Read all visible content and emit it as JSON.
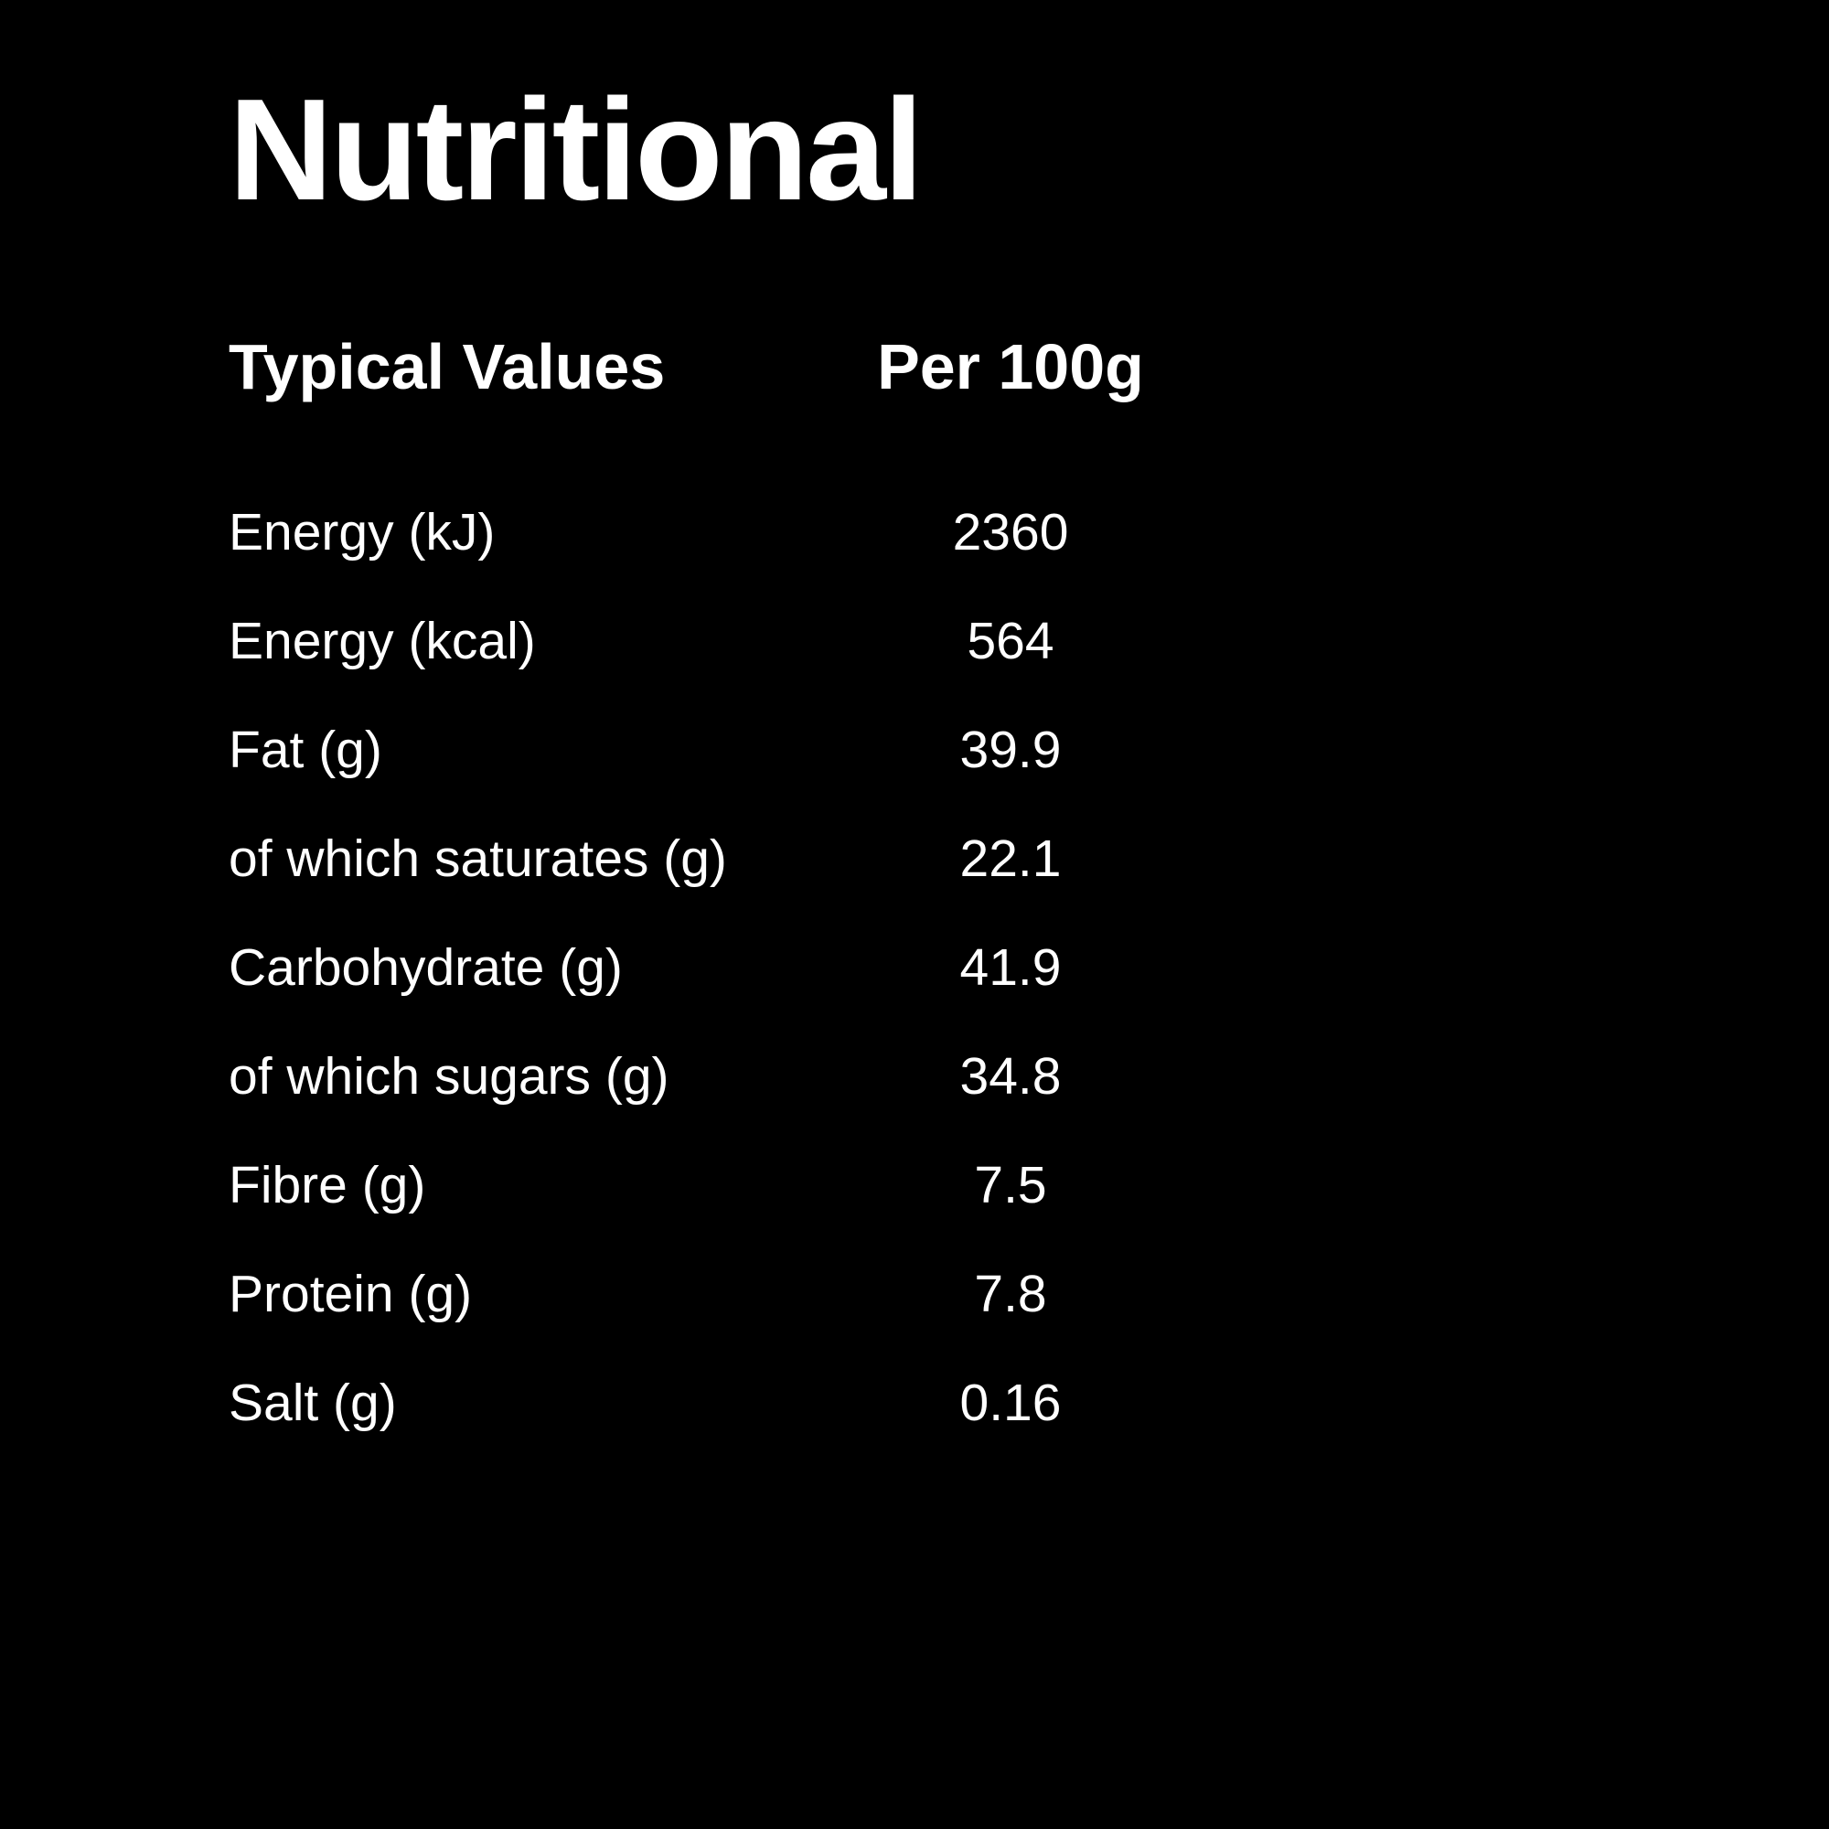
{
  "colors": {
    "background": "#000000",
    "text": "#FFFFFF"
  },
  "title": "Nutritional",
  "table": {
    "columns": {
      "label": "Typical Values",
      "value": "Per 100g"
    },
    "rows": [
      {
        "label": "Energy (kJ)",
        "value": "2360"
      },
      {
        "label": "Energy (kcal)",
        "value": "564"
      },
      {
        "label": "Fat (g)",
        "value": "39.9"
      },
      {
        "label": "of which saturates (g)",
        "value": "22.1"
      },
      {
        "label": "Carbohydrate (g)",
        "value": "41.9"
      },
      {
        "label": "of which sugars (g)",
        "value": "34.8"
      },
      {
        "label": "Fibre (g)",
        "value": "7.5"
      },
      {
        "label": "Protein (g)",
        "value": "7.8"
      },
      {
        "label": "Salt (g)",
        "value": "0.16"
      }
    ]
  }
}
